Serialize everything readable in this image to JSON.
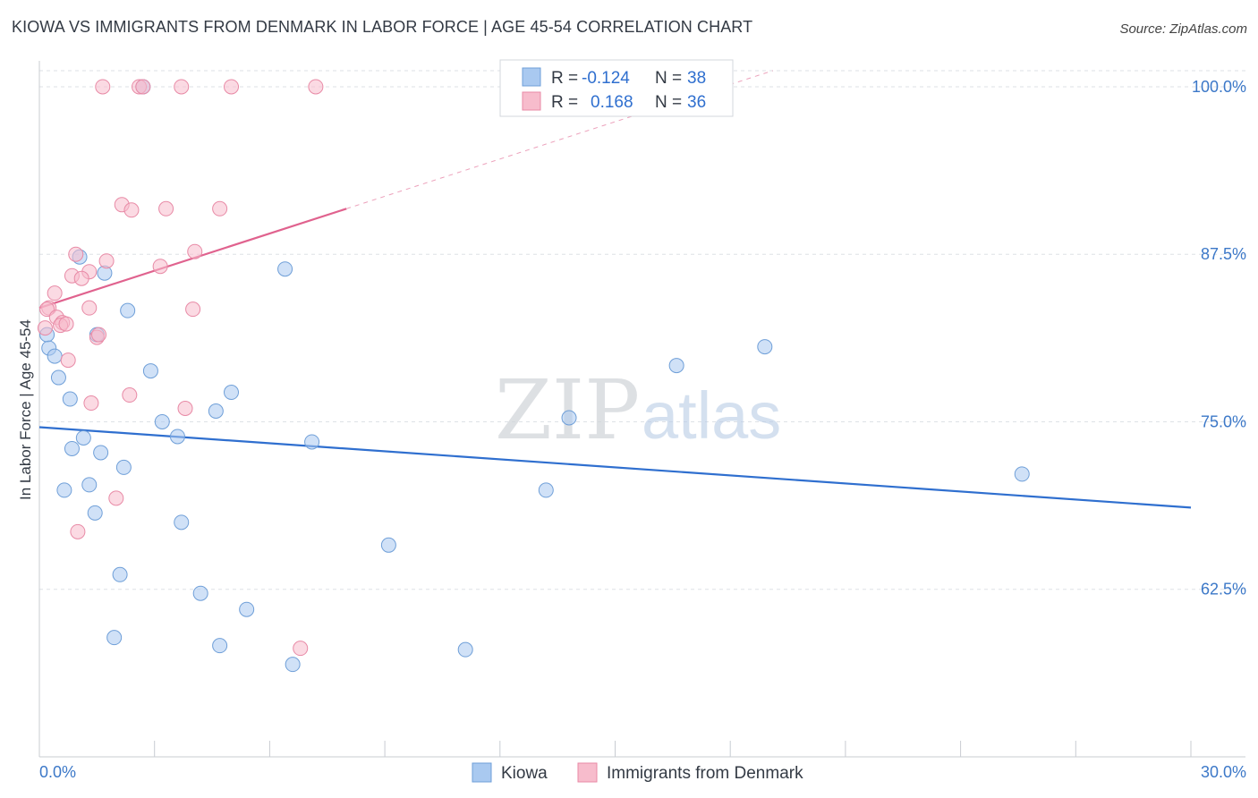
{
  "header": {
    "title": "KIOWA VS IMMIGRANTS FROM DENMARK IN LABOR FORCE | AGE 45-54 CORRELATION CHART",
    "source": "Source: ZipAtlas.com"
  },
  "watermark": {
    "zip": "ZIP",
    "atlas": "atlas"
  },
  "colors": {
    "kiowa_fill": "#a9c9f0",
    "kiowa_stroke": "#6f9fd8",
    "kiowa_line": "#2f6fcf",
    "denmark_fill": "#f7bccc",
    "denmark_stroke": "#e88aa6",
    "denmark_line": "#e0628e",
    "grid": "#dde1e6",
    "axis_label": "#3c78c8"
  },
  "legend": {
    "r_label": "R =",
    "n_label": "N =",
    "rows": [
      {
        "r": "-0.124",
        "n": "38"
      },
      {
        "r": "0.168",
        "n": "36"
      }
    ]
  },
  "chart_data": {
    "type": "scatter",
    "title": "KIOWA VS IMMIGRANTS FROM DENMARK IN LABOR FORCE | AGE 45-54 CORRELATION CHART",
    "xlabel": "",
    "ylabel": "In Labor Force | Age 45-54",
    "xlim": [
      0,
      30
    ],
    "ylim": [
      50,
      101.2
    ],
    "x_tick_labels": [
      "0.0%",
      "30.0%"
    ],
    "y_ticks": [
      62.5,
      75.0,
      87.5,
      100.0
    ],
    "y_tick_labels": [
      "62.5%",
      "75.0%",
      "87.5%",
      "100.0%"
    ],
    "grid": true,
    "series": [
      {
        "name": "Kiowa",
        "points": [
          [
            2.7,
            100.0
          ],
          [
            1.05,
            87.3
          ],
          [
            1.7,
            86.1
          ],
          [
            6.4,
            86.4
          ],
          [
            2.3,
            83.3
          ],
          [
            1.5,
            81.5
          ],
          [
            0.2,
            81.5
          ],
          [
            0.25,
            80.5
          ],
          [
            0.4,
            79.9
          ],
          [
            18.9,
            80.6
          ],
          [
            16.6,
            79.2
          ],
          [
            2.9,
            78.8
          ],
          [
            0.5,
            78.3
          ],
          [
            5.0,
            77.2
          ],
          [
            0.8,
            76.7
          ],
          [
            4.6,
            75.8
          ],
          [
            13.8,
            75.3
          ],
          [
            3.2,
            75.0
          ],
          [
            3.6,
            73.9
          ],
          [
            1.15,
            73.8
          ],
          [
            7.1,
            73.5
          ],
          [
            0.85,
            73.0
          ],
          [
            1.6,
            72.7
          ],
          [
            2.2,
            71.6
          ],
          [
            25.6,
            71.1
          ],
          [
            1.3,
            70.3
          ],
          [
            0.65,
            69.9
          ],
          [
            13.2,
            69.9
          ],
          [
            1.45,
            68.2
          ],
          [
            3.7,
            67.5
          ],
          [
            9.1,
            65.8
          ],
          [
            2.1,
            63.6
          ],
          [
            4.2,
            62.2
          ],
          [
            5.4,
            61.0
          ],
          [
            1.95,
            58.9
          ],
          [
            4.7,
            58.3
          ],
          [
            11.1,
            58.0
          ],
          [
            6.6,
            56.9
          ]
        ]
      },
      {
        "name": "Immigrants from Denmark",
        "points": [
          [
            1.65,
            100.0
          ],
          [
            2.6,
            100.0
          ],
          [
            2.7,
            100.0
          ],
          [
            3.7,
            100.0
          ],
          [
            5.0,
            100.0
          ],
          [
            7.2,
            100.0
          ],
          [
            2.15,
            91.2
          ],
          [
            2.4,
            90.8
          ],
          [
            3.3,
            90.9
          ],
          [
            4.7,
            90.9
          ],
          [
            4.05,
            87.7
          ],
          [
            0.95,
            87.5
          ],
          [
            1.75,
            87.0
          ],
          [
            3.15,
            86.6
          ],
          [
            0.85,
            85.9
          ],
          [
            1.3,
            86.2
          ],
          [
            1.1,
            85.7
          ],
          [
            0.4,
            84.6
          ],
          [
            0.25,
            83.5
          ],
          [
            0.2,
            83.4
          ],
          [
            1.3,
            83.5
          ],
          [
            4.0,
            83.4
          ],
          [
            0.45,
            82.8
          ],
          [
            0.6,
            82.4
          ],
          [
            0.55,
            82.2
          ],
          [
            0.15,
            82.0
          ],
          [
            1.5,
            81.3
          ],
          [
            1.55,
            81.5
          ],
          [
            0.75,
            79.6
          ],
          [
            2.35,
            77.0
          ],
          [
            1.35,
            76.4
          ],
          [
            3.8,
            76.0
          ],
          [
            2.0,
            69.3
          ],
          [
            1.0,
            66.8
          ],
          [
            6.8,
            58.1
          ],
          [
            0.7,
            82.3
          ]
        ]
      }
    ],
    "trend_lines": [
      {
        "series": "Kiowa",
        "x": [
          0,
          30
        ],
        "y": [
          74.6,
          68.6
        ],
        "style": "solid"
      },
      {
        "series": "Immigrants from Denmark",
        "x": [
          0,
          8.0
        ],
        "y": [
          83.5,
          90.9
        ],
        "style": "solid"
      },
      {
        "series": "Immigrants from Denmark",
        "x": [
          8.0,
          30
        ],
        "y": [
          90.9,
          111.3
        ],
        "style": "dashed"
      }
    ],
    "legend_labels": [
      "Kiowa",
      "Immigrants from Denmark"
    ]
  }
}
